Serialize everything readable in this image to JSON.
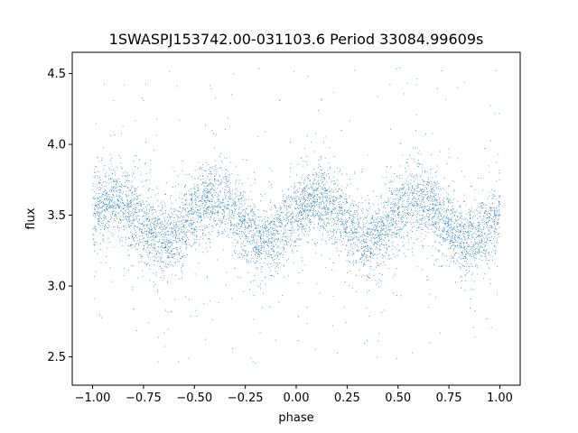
{
  "chart_data": {
    "type": "scatter",
    "title": "1SWASPJ153742.00-031103.6 Period 33084.99609s",
    "xlabel": "phase",
    "ylabel": "flux",
    "xlim": [
      -1.1,
      1.1
    ],
    "ylim": [
      2.3,
      4.65
    ],
    "x_ticks": [
      -1.0,
      -0.75,
      -0.5,
      -0.25,
      0.0,
      0.25,
      0.5,
      0.75,
      1.0
    ],
    "x_tick_labels": [
      "−1.00",
      "−0.75",
      "−0.50",
      "−0.25",
      "0.00",
      "0.25",
      "0.50",
      "0.75",
      "1.00"
    ],
    "y_ticks": [
      2.5,
      3.0,
      3.5,
      4.0,
      4.5
    ],
    "y_tick_labels": [
      "2.5",
      "3.0",
      "3.5",
      "4.0",
      "4.5"
    ],
    "grid": false,
    "marker_color": "#1f77b4",
    "phase_range": [
      -1.0,
      1.0
    ],
    "light_curve": {
      "mean_flux": 3.47,
      "period_in_phase": 0.5,
      "semi_amplitude": 0.14,
      "peak_phases": [
        -0.9,
        -0.4,
        0.1,
        0.6
      ],
      "trough_phases": [
        -0.65,
        -0.15,
        0.35,
        0.85
      ],
      "scatter_sigma": 0.17,
      "flux_range": [
        2.4,
        4.55
      ]
    }
  }
}
